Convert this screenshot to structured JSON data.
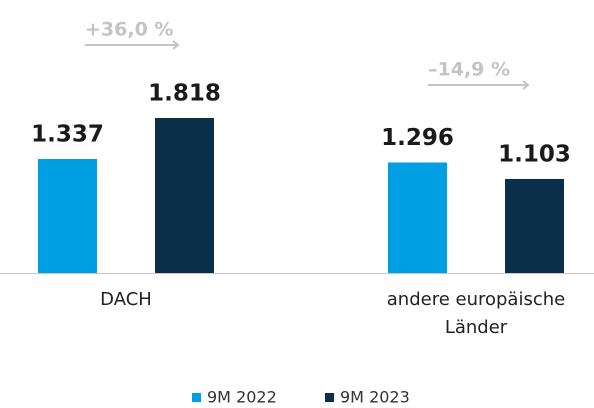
{
  "chart_data": {
    "type": "bar",
    "categories": [
      "DACH",
      "andere europäische Länder"
    ],
    "series": [
      {
        "name": "9M 2022",
        "color": "#009fe3",
        "values": [
          1337,
          1296
        ],
        "value_labels": [
          "1.337",
          "1.296"
        ]
      },
      {
        "name": "9M 2023",
        "color": "#0a2f4a",
        "values": [
          1818,
          1103
        ],
        "value_labels": [
          "1.818",
          "1.103"
        ]
      }
    ],
    "annotations": [
      "+36,0 %",
      "–14,9 %"
    ],
    "legend": "bottom"
  }
}
